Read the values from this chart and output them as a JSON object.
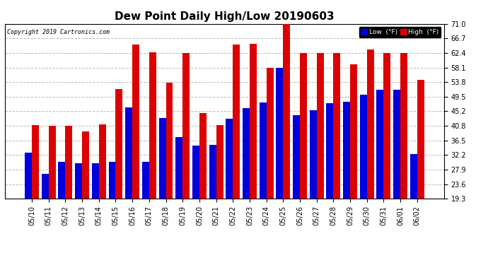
{
  "title": "Dew Point Daily High/Low 20190603",
  "copyright": "Copyright 2019 Cartronics.com",
  "dates": [
    "05/10",
    "05/11",
    "05/12",
    "05/13",
    "05/14",
    "05/15",
    "05/16",
    "05/17",
    "05/18",
    "05/19",
    "05/20",
    "05/21",
    "05/22",
    "05/23",
    "05/24",
    "05/25",
    "05/26",
    "05/27",
    "05/28",
    "05/29",
    "05/30",
    "05/31",
    "06/01",
    "06/02"
  ],
  "high": [
    41.0,
    40.8,
    40.8,
    39.2,
    41.2,
    51.8,
    64.9,
    62.6,
    53.6,
    62.4,
    44.6,
    41.0,
    64.9,
    65.0,
    58.1,
    71.0,
    62.4,
    62.4,
    62.4,
    59.0,
    63.5,
    62.4,
    62.4,
    54.5
  ],
  "low": [
    33.0,
    26.6,
    30.2,
    29.7,
    29.7,
    30.2,
    46.4,
    30.2,
    43.2,
    37.6,
    35.0,
    35.2,
    43.0,
    46.0,
    47.7,
    57.9,
    43.9,
    45.5,
    47.5,
    48.0,
    50.0,
    51.5,
    51.5,
    32.5
  ],
  "ylim": [
    19.3,
    71.0
  ],
  "yticks": [
    19.3,
    23.6,
    27.9,
    32.2,
    36.5,
    40.8,
    45.2,
    49.5,
    53.8,
    58.1,
    62.4,
    66.7,
    71.0
  ],
  "bar_width": 0.42,
  "low_color": "#0000dd",
  "high_color": "#dd0000",
  "bg_color": "#ffffff",
  "grid_color": "#bbbbbb",
  "title_fontsize": 11,
  "legend_low_label": "Low  (°F)",
  "legend_high_label": "High  (°F)"
}
